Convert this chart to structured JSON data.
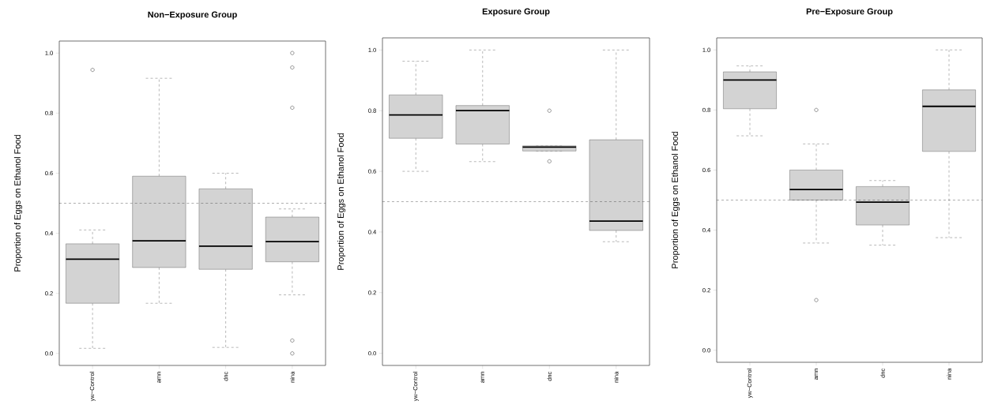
{
  "chart_data": [
    {
      "type": "box",
      "title": "Non−Exposure Group",
      "ylabel": "Proportion of Eggs on Ethanol Food",
      "categories": [
        "yw−Control",
        "amn",
        "dnc",
        "nina"
      ],
      "color": "#d3d3d3",
      "boxes": [
        {
          "low": 0.017,
          "q1": 0.167,
          "median": 0.314,
          "q3": 0.365,
          "high": 0.411,
          "outliers": [
            0.944
          ]
        },
        {
          "low": 0.167,
          "q1": 0.286,
          "median": 0.375,
          "q3": 0.59,
          "high": 0.916
        },
        {
          "low": 0.02,
          "q1": 0.28,
          "median": 0.357,
          "q3": 0.548,
          "high": 0.6
        },
        {
          "low": 0.195,
          "q1": 0.305,
          "median": 0.372,
          "q3": 0.454,
          "high": 0.481,
          "outliers": [
            0.0,
            0.043,
            0.818,
            0.952,
            1.0
          ]
        }
      ],
      "ylim": [
        -0.04,
        1.04
      ],
      "yticks": [
        {
          "value": 0,
          "label": "0.0"
        },
        {
          "value": 0.2,
          "label": "0.2"
        },
        {
          "value": 0.4,
          "label": "0.4"
        },
        {
          "value": 0.6,
          "label": "0.6"
        },
        {
          "value": 0.8,
          "label": "0.8"
        },
        {
          "value": 1,
          "label": "1.0"
        }
      ],
      "ref_lines": [
        {
          "axis": "y",
          "value": 0.5,
          "line_style": "dashed"
        }
      ]
    },
    {
      "type": "box",
      "title": "Exposure Group",
      "ylabel": "Proportion of Eggs on Ethanol Food",
      "categories": [
        "yw−Control",
        "amn",
        "dnc",
        "nina"
      ],
      "color": "#d3d3d3",
      "boxes": [
        {
          "low": 0.6,
          "q1": 0.709,
          "median": 0.786,
          "q3": 0.852,
          "high": 0.963
        },
        {
          "low": 0.632,
          "q1": 0.69,
          "median": 0.8,
          "q3": 0.817,
          "high": 1.0
        },
        {
          "low": 0.667,
          "q1": 0.667,
          "median": 0.68,
          "q3": 0.684,
          "high": 0.684,
          "outliers": [
            0.633,
            0.8
          ]
        },
        {
          "low": 0.368,
          "q1": 0.405,
          "median": 0.436,
          "q3": 0.704,
          "high": 1.0
        }
      ],
      "ylim": [
        -0.04,
        1.04
      ],
      "yticks": [
        {
          "value": 0,
          "label": "0.0"
        },
        {
          "value": 0.2,
          "label": "0.2"
        },
        {
          "value": 0.4,
          "label": "0.4"
        },
        {
          "value": 0.6,
          "label": "0.6"
        },
        {
          "value": 0.8,
          "label": "0.8"
        },
        {
          "value": 1,
          "label": "1.0"
        }
      ],
      "ref_lines": [
        {
          "axis": "y",
          "value": 0.5,
          "line_style": "dashed"
        }
      ]
    },
    {
      "type": "box",
      "title": "Pre−Exposure Group",
      "ylabel": "Proportion of Eggs on Ethanol Food",
      "categories": [
        "yw−Control",
        "amn",
        "dnc",
        "nina"
      ],
      "color": "#d3d3d3",
      "boxes": [
        {
          "low": 0.714,
          "q1": 0.804,
          "median": 0.9,
          "q3": 0.927,
          "high": 0.947
        },
        {
          "low": 0.357,
          "q1": 0.5,
          "median": 0.535,
          "q3": 0.6,
          "high": 0.687,
          "outliers": [
            0.167,
            0.8
          ]
        },
        {
          "low": 0.35,
          "q1": 0.417,
          "median": 0.493,
          "q3": 0.545,
          "high": 0.565
        },
        {
          "low": 0.375,
          "q1": 0.662,
          "median": 0.812,
          "q3": 0.867,
          "high": 1.0
        }
      ],
      "ylim": [
        -0.04,
        1.04
      ],
      "yticks": [
        {
          "value": 0,
          "label": "0.0"
        },
        {
          "value": 0.2,
          "label": "0.2"
        },
        {
          "value": 0.4,
          "label": "0.4"
        },
        {
          "value": 0.6,
          "label": "0.6"
        },
        {
          "value": 0.8,
          "label": "0.8"
        },
        {
          "value": 1,
          "label": "1.0"
        }
      ],
      "ref_lines": [
        {
          "axis": "y",
          "value": 0.5,
          "line_style": "dashed"
        }
      ]
    }
  ]
}
